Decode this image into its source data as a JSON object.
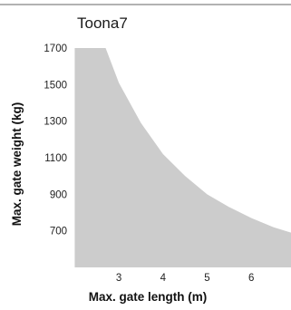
{
  "chart_data": {
    "type": "area",
    "title": "Toona7",
    "xlabel": "Max. gate length (m)",
    "ylabel": "Max. gate weight (kg)",
    "x_ticks": [
      3,
      4,
      5,
      6
    ],
    "y_ticks": [
      700,
      900,
      1100,
      1300,
      1500,
      1700
    ],
    "xlim": [
      1.95,
      6.9
    ],
    "ylim": [
      500,
      1700
    ],
    "fill_color": "#cccccc",
    "grid": false,
    "series": [
      {
        "x": [
          2,
          2.5,
          2.7,
          3,
          3.5,
          4,
          4.5,
          5,
          5.5,
          6,
          6.5,
          6.9
        ],
        "values": [
          1700,
          1700,
          1700,
          1510,
          1290,
          1120,
          1000,
          900,
          830,
          770,
          720,
          690
        ]
      }
    ]
  }
}
